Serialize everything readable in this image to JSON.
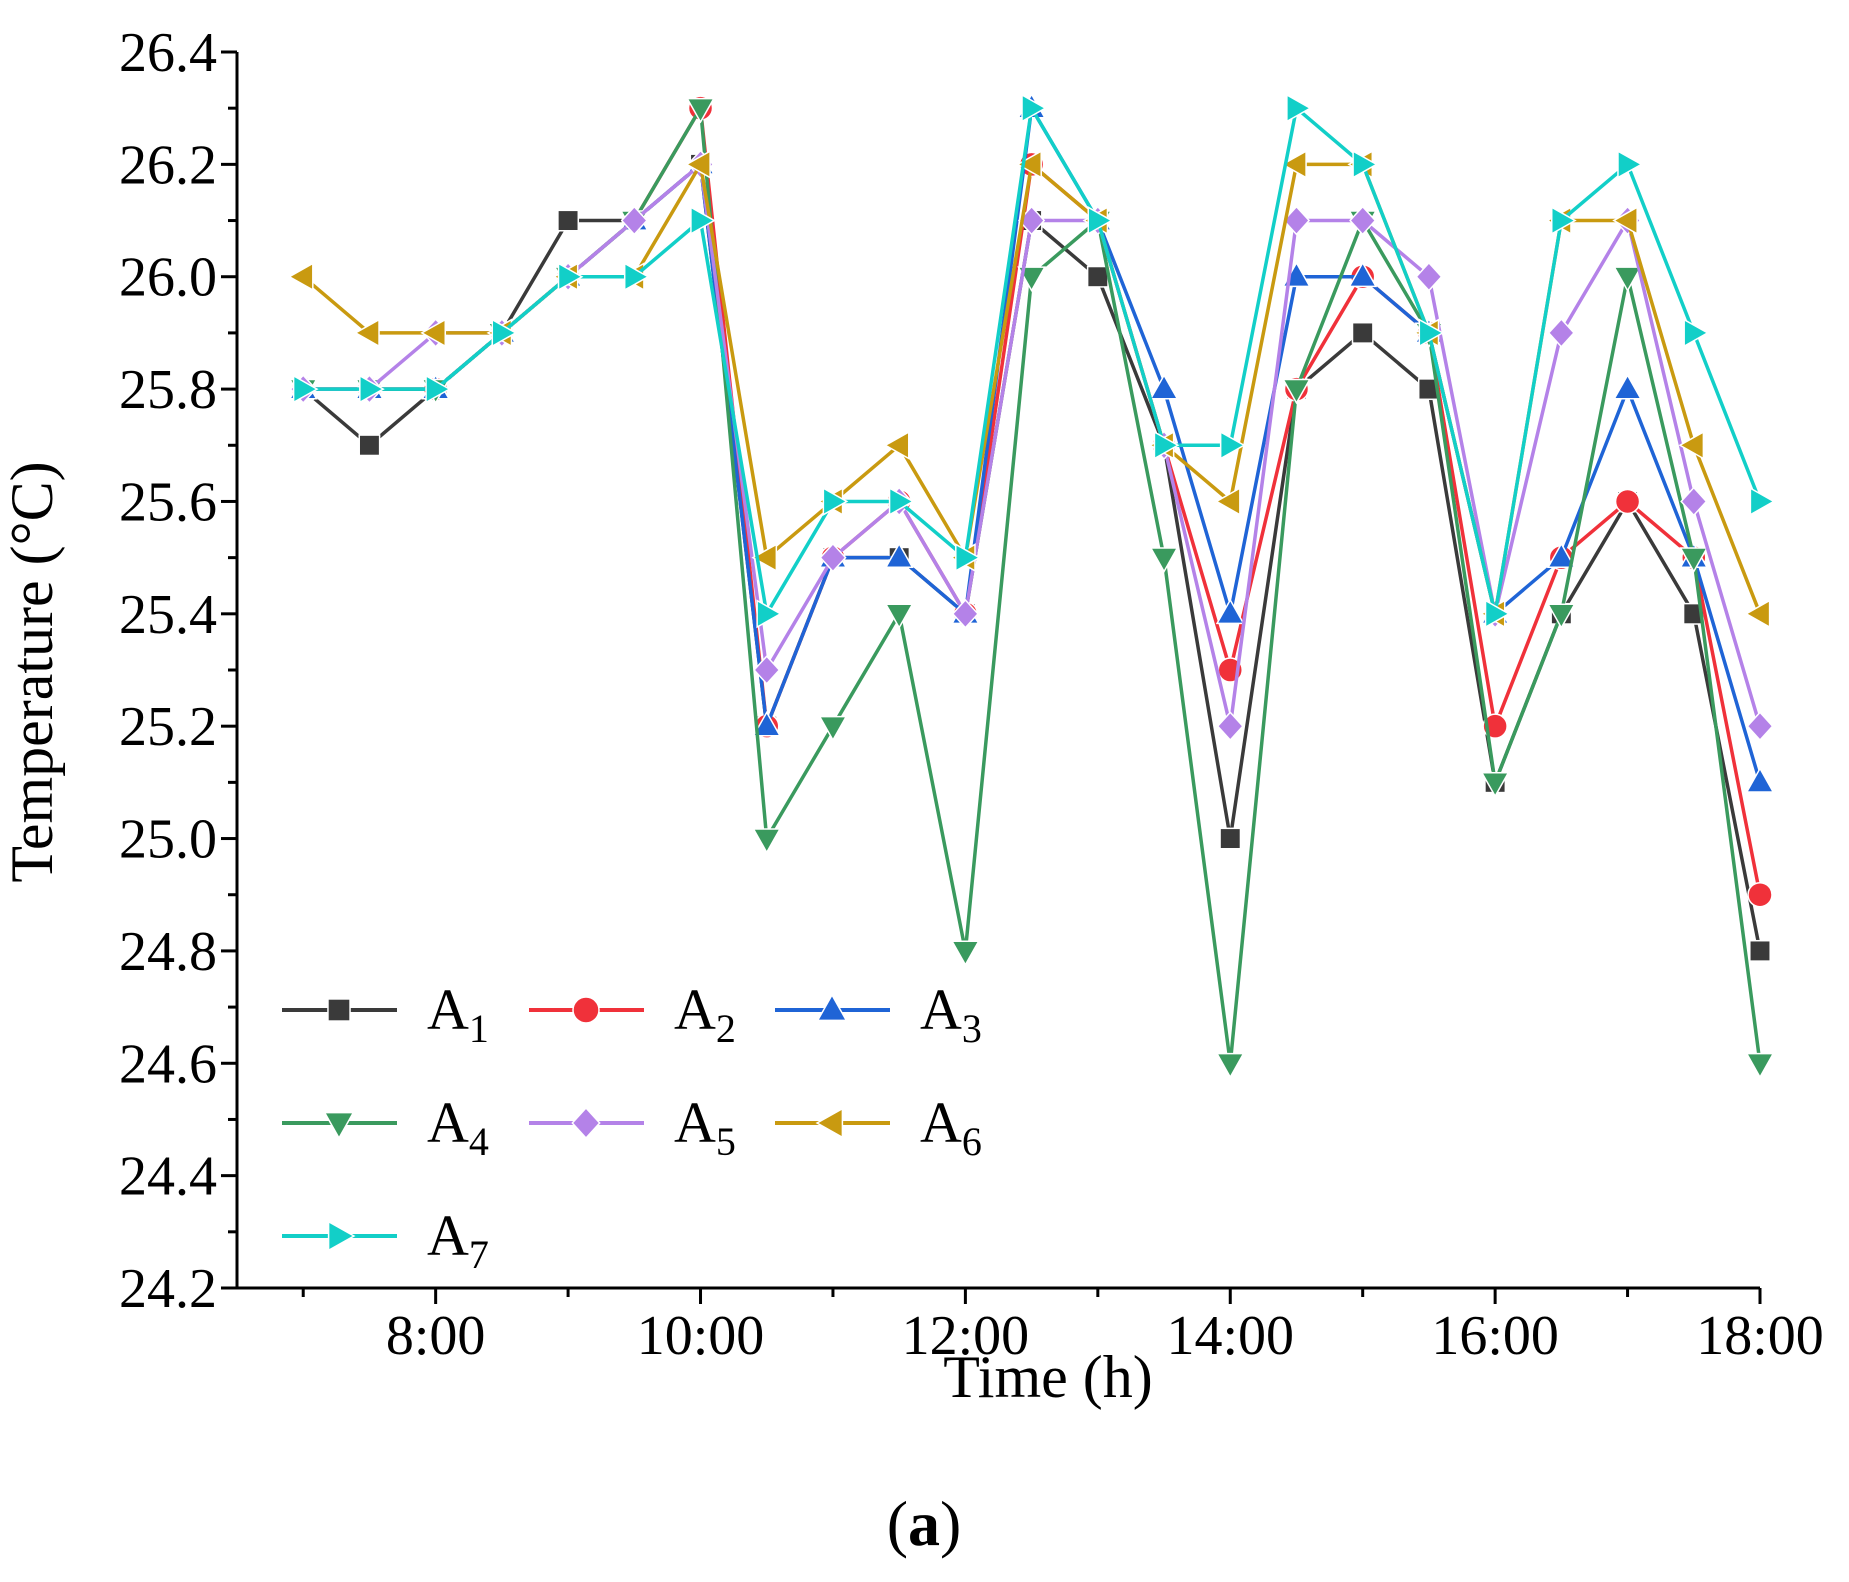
{
  "chart_data": {
    "type": "line",
    "title": "",
    "xlabel": "Time (h)",
    "ylabel": "Temperature (°C)",
    "panel_label": "a",
    "x": [
      7,
      7.5,
      8,
      8.5,
      9,
      9.5,
      10,
      10.5,
      11,
      11.5,
      12,
      12.5,
      13,
      13.5,
      14,
      14.5,
      15,
      15.5,
      16,
      16.5,
      17,
      17.5,
      18
    ],
    "xlim": [
      6.5,
      18
    ],
    "ylim": [
      24.2,
      26.4
    ],
    "x_ticks": [
      8,
      10,
      12,
      14,
      16,
      18
    ],
    "x_tick_labels": [
      "8:00",
      "10:00",
      "12:00",
      "14:00",
      "16:00",
      "18:00"
    ],
    "y_ticks": [
      24.2,
      24.4,
      24.6,
      24.8,
      25.0,
      25.2,
      25.4,
      25.6,
      25.8,
      26.0,
      26.2,
      26.4
    ],
    "y_tick_labels": [
      "24.2",
      "24.4",
      "24.6",
      "24.8",
      "25.0",
      "25.2",
      "25.4",
      "25.6",
      "25.8",
      "26.0",
      "26.2",
      "26.4"
    ],
    "grid": false,
    "legend_position": "bottom-left",
    "series": [
      {
        "name": "A",
        "sub": "1",
        "color": "#3a3a3a",
        "marker": "square",
        "values": [
          25.8,
          25.7,
          25.8,
          25.9,
          26.1,
          26.1,
          26.2,
          25.2,
          25.5,
          25.5,
          25.4,
          26.1,
          26.0,
          25.7,
          25.0,
          25.8,
          25.9,
          25.8,
          25.1,
          25.4,
          25.6,
          25.4,
          24.8
        ]
      },
      {
        "name": "A",
        "sub": "2",
        "color": "#f0313a",
        "marker": "circle",
        "values": [
          25.8,
          25.8,
          25.8,
          25.9,
          26.0,
          26.1,
          26.3,
          25.2,
          25.5,
          25.6,
          25.4,
          26.2,
          26.1,
          25.7,
          25.3,
          25.8,
          26.0,
          25.9,
          25.2,
          25.5,
          25.6,
          25.5,
          24.9
        ]
      },
      {
        "name": "A",
        "sub": "3",
        "color": "#1f64d6",
        "marker": "triangle-up",
        "values": [
          25.8,
          25.8,
          25.8,
          25.9,
          26.0,
          26.1,
          26.2,
          25.2,
          25.5,
          25.5,
          25.4,
          26.3,
          26.1,
          25.8,
          25.4,
          26.0,
          26.0,
          25.9,
          25.4,
          25.5,
          25.8,
          25.5,
          25.1
        ]
      },
      {
        "name": "A",
        "sub": "4",
        "color": "#3a9a5e",
        "marker": "triangle-down",
        "values": [
          25.8,
          25.8,
          25.8,
          25.9,
          26.0,
          26.1,
          26.3,
          25.0,
          25.2,
          25.4,
          24.8,
          26.0,
          26.1,
          25.5,
          24.6,
          25.8,
          26.1,
          25.9,
          25.1,
          25.4,
          26.0,
          25.5,
          24.6
        ]
      },
      {
        "name": "A",
        "sub": "5",
        "color": "#b482e8",
        "marker": "diamond",
        "values": [
          25.8,
          25.8,
          25.9,
          25.9,
          26.0,
          26.1,
          26.2,
          25.3,
          25.5,
          25.6,
          25.4,
          26.1,
          26.1,
          25.7,
          25.2,
          26.1,
          26.1,
          26.0,
          25.4,
          25.9,
          26.1,
          25.6,
          25.2
        ]
      },
      {
        "name": "A",
        "sub": "6",
        "color": "#c99a10",
        "marker": "triangle-left",
        "values": [
          26.0,
          25.9,
          25.9,
          25.9,
          26.0,
          26.0,
          26.2,
          25.5,
          25.6,
          25.7,
          25.5,
          26.2,
          26.1,
          25.7,
          25.6,
          26.2,
          26.2,
          25.9,
          25.4,
          26.1,
          26.1,
          25.7,
          25.4
        ]
      },
      {
        "name": "A",
        "sub": "7",
        "color": "#12cfc8",
        "marker": "triangle-right",
        "values": [
          25.8,
          25.8,
          25.8,
          25.9,
          26.0,
          26.0,
          26.1,
          25.4,
          25.6,
          25.6,
          25.5,
          26.3,
          26.1,
          25.7,
          25.7,
          26.3,
          26.2,
          25.9,
          25.4,
          26.1,
          26.2,
          25.9,
          25.6
        ]
      }
    ]
  }
}
